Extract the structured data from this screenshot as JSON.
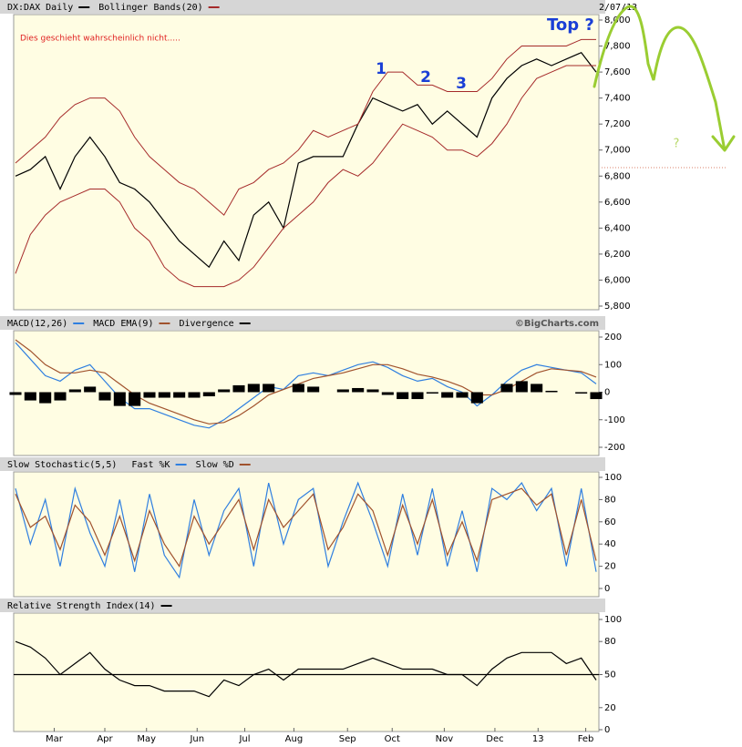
{
  "chart_data": [
    {
      "type": "line",
      "date": "2/07/13",
      "annotations": [
        "Dies geschieht wahrscheinlich nicht.....",
        "1",
        "2",
        "3",
        "Top ?",
        "?"
      ],
      "ylim": [
        5800,
        8000
      ],
      "yticks": [
        {
          "value": 5800,
          "label": "5,800"
        },
        {
          "value": 6000,
          "label": "6,000"
        },
        {
          "value": 6200,
          "label": "6,200"
        },
        {
          "value": 6400,
          "label": "6,400"
        },
        {
          "value": 6600,
          "label": "6,600"
        },
        {
          "value": 6800,
          "label": "6,800"
        },
        {
          "value": 7000,
          "label": "7,000"
        },
        {
          "value": 7200,
          "label": "7,200"
        },
        {
          "value": 7400,
          "label": "7,400"
        },
        {
          "value": 7600,
          "label": "7,600"
        },
        {
          "value": 7800,
          "label": "7,800"
        },
        {
          "value": 8000,
          "label": "8,000"
        }
      ],
      "series": [
        {
          "name": "DX:DAX Daily",
          "color": "#000000",
          "values": [
            6800,
            6850,
            6950,
            6700,
            6950,
            7100,
            6950,
            6750,
            6700,
            6600,
            6450,
            6300,
            6200,
            6100,
            6300,
            6150,
            6500,
            6600,
            6400,
            6900,
            6950,
            6950,
            6950,
            7200,
            7400,
            7350,
            7300,
            7350,
            7200,
            7300,
            7200,
            7100,
            7400,
            7550,
            7650,
            7700,
            7650,
            7700,
            7750,
            7600
          ]
        },
        {
          "name": "Bollinger Bands(20)",
          "color": "#a52a2a",
          "upper": [
            6900,
            7000,
            7100,
            7250,
            7350,
            7400,
            7400,
            7300,
            7100,
            6950,
            6850,
            6750,
            6700,
            6600,
            6500,
            6700,
            6750,
            6850,
            6900,
            7000,
            7150,
            7100,
            7150,
            7200,
            7450,
            7600,
            7600,
            7500,
            7500,
            7450,
            7450,
            7450,
            7550,
            7700,
            7800,
            7800,
            7800,
            7800,
            7850,
            7850
          ],
          "lower": [
            6050,
            6350,
            6500,
            6600,
            6650,
            6700,
            6700,
            6600,
            6400,
            6300,
            6100,
            6000,
            5950,
            5950,
            5950,
            6000,
            6100,
            6250,
            6400,
            6500,
            6600,
            6750,
            6850,
            6800,
            6900,
            7050,
            7200,
            7150,
            7100,
            7000,
            7000,
            6950,
            7050,
            7200,
            7400,
            7550,
            7600,
            7650,
            7650,
            7650
          ]
        }
      ]
    },
    {
      "type": "line",
      "source": "©BigCharts.com",
      "ylim": [
        -200,
        200
      ],
      "yticks": [
        -200,
        -100,
        0,
        100,
        200
      ],
      "series": [
        {
          "name": "MACD(12,26)",
          "color": "#2f7fe0",
          "values": [
            180,
            120,
            60,
            40,
            80,
            100,
            40,
            -20,
            -60,
            -60,
            -80,
            -100,
            -120,
            -130,
            -100,
            -60,
            -20,
            20,
            10,
            60,
            70,
            60,
            80,
            100,
            110,
            90,
            60,
            40,
            50,
            20,
            0,
            -50,
            -10,
            40,
            80,
            100,
            90,
            80,
            70,
            30
          ]
        },
        {
          "name": "MACD EMA(9)",
          "color": "#a0522d",
          "values": [
            190,
            150,
            100,
            70,
            70,
            80,
            70,
            30,
            -10,
            -40,
            -60,
            -80,
            -100,
            -115,
            -110,
            -85,
            -50,
            -10,
            10,
            30,
            50,
            60,
            70,
            85,
            100,
            100,
            85,
            65,
            55,
            40,
            20,
            -10,
            -10,
            10,
            40,
            70,
            85,
            80,
            75,
            55
          ]
        },
        {
          "name": "Divergence",
          "color": "#000000",
          "style": "bar",
          "values": [
            -10,
            -30,
            -40,
            -30,
            10,
            20,
            -30,
            -50,
            -50,
            -20,
            -20,
            -20,
            -20,
            -15,
            10,
            25,
            30,
            30,
            0,
            30,
            20,
            0,
            10,
            15,
            10,
            -10,
            -25,
            -25,
            -5,
            -20,
            -20,
            -40,
            0,
            30,
            40,
            30,
            5,
            0,
            -5,
            -25
          ]
        }
      ]
    },
    {
      "type": "line",
      "ylim": [
        0,
        100
      ],
      "yticks": [
        0,
        20,
        40,
        60,
        80,
        100
      ],
      "series": [
        {
          "name": "Slow Stochastic(5,5)",
          "color": "#000000",
          "legend_only": true
        },
        {
          "name": "Fast %K",
          "color": "#2f7fe0",
          "values": [
            90,
            40,
            80,
            20,
            90,
            50,
            20,
            80,
            15,
            85,
            30,
            10,
            80,
            30,
            70,
            90,
            20,
            95,
            40,
            80,
            90,
            20,
            60,
            95,
            60,
            20,
            85,
            30,
            90,
            20,
            70,
            15,
            90,
            80,
            95,
            70,
            90,
            20,
            90,
            15
          ]
        },
        {
          "name": "Slow %D",
          "color": "#a0522d",
          "values": [
            85,
            55,
            65,
            35,
            75,
            60,
            30,
            65,
            25,
            70,
            40,
            20,
            65,
            40,
            60,
            80,
            35,
            80,
            55,
            70,
            85,
            35,
            55,
            85,
            70,
            30,
            75,
            40,
            80,
            30,
            60,
            25,
            80,
            85,
            90,
            75,
            85,
            30,
            80,
            25
          ]
        }
      ]
    },
    {
      "type": "line",
      "ylim": [
        0,
        100
      ],
      "yticks": [
        0,
        20,
        50,
        80,
        100
      ],
      "reference_line": 50,
      "series": [
        {
          "name": "Relative Strength Index(14)",
          "color": "#000000",
          "values": [
            80,
            75,
            65,
            50,
            60,
            70,
            55,
            45,
            40,
            40,
            35,
            35,
            35,
            30,
            45,
            40,
            50,
            55,
            45,
            55,
            55,
            55,
            55,
            60,
            65,
            60,
            55,
            55,
            55,
            50,
            50,
            40,
            55,
            65,
            70,
            70,
            70,
            60,
            65,
            45
          ]
        }
      ],
      "xticks": [
        {
          "value": 2.6,
          "label": "Mar"
        },
        {
          "value": 6.0,
          "label": "Apr"
        },
        {
          "value": 8.8,
          "label": "May"
        },
        {
          "value": 12.2,
          "label": "Jun"
        },
        {
          "value": 15.4,
          "label": "Jul"
        },
        {
          "value": 18.7,
          "label": "Aug"
        },
        {
          "value": 22.3,
          "label": "Sep"
        },
        {
          "value": 25.3,
          "label": "Oct"
        },
        {
          "value": 28.8,
          "label": "Nov"
        },
        {
          "value": 32.2,
          "label": "Dec"
        },
        {
          "value": 35.1,
          "label": "13"
        },
        {
          "value": 38.3,
          "label": "Feb"
        }
      ]
    }
  ]
}
